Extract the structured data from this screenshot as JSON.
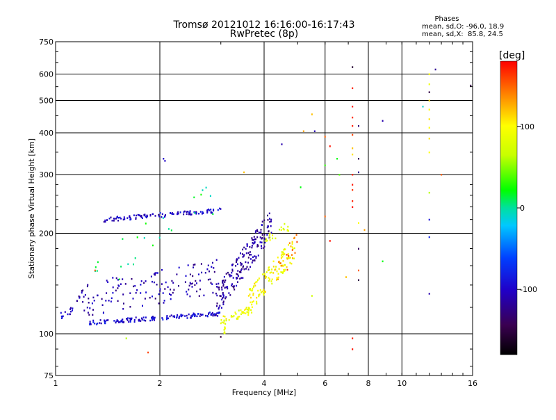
{
  "chart_data": {
    "type": "scatter",
    "title": "Tromsø 20121012 16:16:00-16:17:43",
    "subtitle": "RwPretec (8p)",
    "xlabel": "Frequency [MHz]",
    "ylabel": "Stationary phase Virtual Height [km]",
    "x_scale": "log",
    "y_scale": "log",
    "xlim": [
      1,
      16
    ],
    "ylim": [
      75,
      750
    ],
    "x_ticks": [
      1,
      2,
      4,
      6,
      8,
      10,
      16
    ],
    "x_tick_labels": [
      "1",
      "2",
      "4",
      "6",
      "8",
      "10",
      "16"
    ],
    "y_ticks": [
      75,
      100,
      200,
      300,
      400,
      500,
      600,
      750
    ],
    "y_tick_labels": [
      "75",
      "100",
      "200",
      "300",
      "400",
      "500",
      "600",
      "750"
    ],
    "grid": true,
    "stats": {
      "heading": "Phases",
      "line_o": "mean, sd,O: -96.0, 18.9",
      "line_x": "mean, sd,X:  85.8, 24.5"
    },
    "colorbar": {
      "label": "[deg]",
      "range": [
        -180,
        180
      ],
      "ticks": [
        -100,
        0,
        100
      ],
      "tick_labels": [
        "-100",
        "0",
        "100"
      ]
    },
    "traces": [
      {
        "x_range": [
          1.02,
          1.12
        ],
        "h_range": [
          112,
          118
        ],
        "phase": -100,
        "n": 14,
        "spread": 0.03
      },
      {
        "x_range": [
          1.25,
          3.0
        ],
        "h_range": [
          108,
          115
        ],
        "phase": -95,
        "n": 150,
        "spread": 0.015
      },
      {
        "x_range": [
          1.38,
          3.0
        ],
        "h_range": [
          220,
          235
        ],
        "phase": -100,
        "n": 110,
        "spread": 0.015
      },
      {
        "x_range": [
          1.15,
          3.0
        ],
        "h_range": [
          125,
          150
        ],
        "phase": -110,
        "n": 150,
        "spread": 0.12
      },
      {
        "x_range": [
          2.9,
          4.2
        ],
        "h_range": [
          125,
          215
        ],
        "phase": -115,
        "n": 190,
        "spread": 0.1
      },
      {
        "x_range": [
          3.0,
          3.7
        ],
        "h_range": [
          110,
          118
        ],
        "phase": 90,
        "n": 45,
        "spread": 0.03
      },
      {
        "x_range": [
          3.05,
          3.1
        ],
        "h_range": [
          100,
          106
        ],
        "phase": 88,
        "n": 8,
        "spread": 0.03
      },
      {
        "x_range": [
          3.6,
          4.9
        ],
        "h_range": [
          125,
          180
        ],
        "phase": 95,
        "n": 120,
        "spread": 0.08
      },
      {
        "x_range": [
          4.0,
          4.7
        ],
        "h_range": [
          190,
          210
        ],
        "phase": 80,
        "n": 20,
        "spread": 0.04
      },
      {
        "x_range": [
          4.2,
          5.0
        ],
        "h_range": [
          140,
          190
        ],
        "phase": 140,
        "n": 20,
        "spread": 0.08
      },
      {
        "x_range": [
          1.2,
          3.0
        ],
        "h_range": [
          140,
          260
        ],
        "phase": 10,
        "n": 25,
        "spread": 0.15
      }
    ],
    "points": [
      {
        "x": 7.2,
        "h": 630,
        "phase": -160
      },
      {
        "x": 7.2,
        "h": 545,
        "phase": 170
      },
      {
        "x": 7.2,
        "h": 480,
        "phase": 175
      },
      {
        "x": 7.2,
        "h": 445,
        "phase": 168
      },
      {
        "x": 7.2,
        "h": 420,
        "phase": 172
      },
      {
        "x": 7.2,
        "h": 395,
        "phase": 160
      },
      {
        "x": 7.2,
        "h": 360,
        "phase": 120
      },
      {
        "x": 7.2,
        "h": 345,
        "phase": 110
      },
      {
        "x": 7.2,
        "h": 300,
        "phase": 170
      },
      {
        "x": 7.2,
        "h": 280,
        "phase": 175
      },
      {
        "x": 7.2,
        "h": 270,
        "phase": 165
      },
      {
        "x": 7.2,
        "h": 250,
        "phase": 170
      },
      {
        "x": 7.2,
        "h": 240,
        "phase": 175
      },
      {
        "x": 7.2,
        "h": 97,
        "phase": 170
      },
      {
        "x": 7.2,
        "h": 90,
        "phase": 175
      },
      {
        "x": 7.5,
        "h": 420,
        "phase": -130
      },
      {
        "x": 7.5,
        "h": 335,
        "phase": -140
      },
      {
        "x": 7.5,
        "h": 305,
        "phase": -120
      },
      {
        "x": 7.5,
        "h": 215,
        "phase": 100
      },
      {
        "x": 7.5,
        "h": 180,
        "phase": -140
      },
      {
        "x": 7.5,
        "h": 155,
        "phase": 150
      },
      {
        "x": 7.5,
        "h": 145,
        "phase": -150
      },
      {
        "x": 6.0,
        "h": 390,
        "phase": 150
      },
      {
        "x": 6.2,
        "h": 365,
        "phase": 175
      },
      {
        "x": 6.0,
        "h": 225,
        "phase": 150
      },
      {
        "x": 6.2,
        "h": 190,
        "phase": 175
      },
      {
        "x": 6.5,
        "h": 335,
        "phase": 20
      },
      {
        "x": 6.6,
        "h": 300,
        "phase": 40
      },
      {
        "x": 6.0,
        "h": 320,
        "phase": 30
      },
      {
        "x": 5.5,
        "h": 455,
        "phase": 120
      },
      {
        "x": 5.6,
        "h": 405,
        "phase": -110
      },
      {
        "x": 5.2,
        "h": 405,
        "phase": 130
      },
      {
        "x": 4.5,
        "h": 370,
        "phase": -110
      },
      {
        "x": 5.1,
        "h": 275,
        "phase": 20
      },
      {
        "x": 5.5,
        "h": 130,
        "phase": 70
      },
      {
        "x": 8.8,
        "h": 435,
        "phase": -110
      },
      {
        "x": 8.8,
        "h": 165,
        "phase": 20
      },
      {
        "x": 7.8,
        "h": 205,
        "phase": 130
      },
      {
        "x": 6.9,
        "h": 148,
        "phase": 120
      },
      {
        "x": 12.5,
        "h": 620,
        "phase": -120
      },
      {
        "x": 12.0,
        "h": 600,
        "phase": 100
      },
      {
        "x": 12.0,
        "h": 560,
        "phase": 90
      },
      {
        "x": 12.0,
        "h": 530,
        "phase": -150
      },
      {
        "x": 12.0,
        "h": 500,
        "phase": 110
      },
      {
        "x": 12.0,
        "h": 470,
        "phase": 100
      },
      {
        "x": 12.0,
        "h": 440,
        "phase": 110
      },
      {
        "x": 12.0,
        "h": 415,
        "phase": 100
      },
      {
        "x": 12.0,
        "h": 385,
        "phase": 110
      },
      {
        "x": 12.0,
        "h": 350,
        "phase": 100
      },
      {
        "x": 12.0,
        "h": 265,
        "phase": 60
      },
      {
        "x": 12.0,
        "h": 220,
        "phase": -90
      },
      {
        "x": 12.0,
        "h": 195,
        "phase": -80
      },
      {
        "x": 12.0,
        "h": 132,
        "phase": -110
      },
      {
        "x": 11.5,
        "h": 480,
        "phase": -10
      },
      {
        "x": 13.0,
        "h": 300,
        "phase": 150
      },
      {
        "x": 15.8,
        "h": 555,
        "phase": -150
      },
      {
        "x": 2.05,
        "h": 335,
        "phase": -100
      },
      {
        "x": 2.07,
        "h": 330,
        "phase": -100
      },
      {
        "x": 3.5,
        "h": 305,
        "phase": 120
      },
      {
        "x": 3.0,
        "h": 98,
        "phase": -150
      },
      {
        "x": 1.6,
        "h": 97,
        "phase": 60
      },
      {
        "x": 1.85,
        "h": 88,
        "phase": 160
      },
      {
        "x": 1.3,
        "h": 155,
        "phase": 150
      }
    ]
  }
}
